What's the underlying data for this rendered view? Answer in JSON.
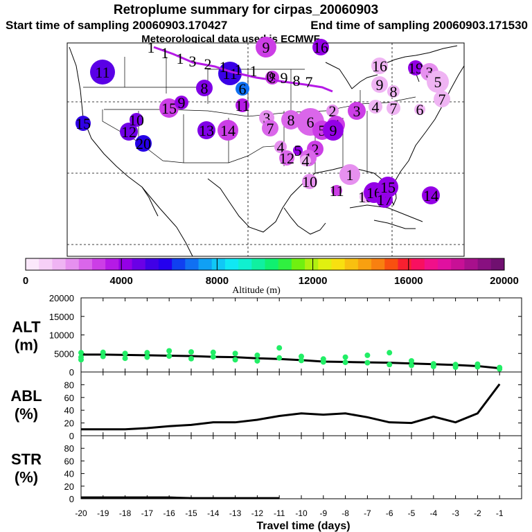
{
  "header": {
    "title": "Retroplume summary for cirpas_20060903",
    "start_label": "Start time of sampling 20060903.170427",
    "end_label": "End time of sampling 20060903.171530",
    "met_label": "Meteorological data used is ECMWF"
  },
  "colorbar": {
    "label": "Altitude (m)",
    "ticks": [
      "0",
      "4000",
      "8000",
      "12000",
      "16000",
      "20000"
    ],
    "colors": [
      "#fbe8fb",
      "#f6d0f7",
      "#efb4f3",
      "#e690ef",
      "#da66ea",
      "#cc3ee6",
      "#b51ae6",
      "#9400e6",
      "#6a00e6",
      "#4000e6",
      "#2400ee",
      "#1040f0",
      "#1070f2",
      "#10a0f4",
      "#10c8f6",
      "#10e8f4",
      "#10f0d0",
      "#10f0a0",
      "#10f070",
      "#30f040",
      "#70f010",
      "#b0f010",
      "#e0f010",
      "#f8e010",
      "#f8c010",
      "#f8a010",
      "#f88010",
      "#f85010",
      "#f82030",
      "#f81060",
      "#f0108a",
      "#e010a0",
      "#c81096",
      "#a8108c",
      "#881080",
      "#701070"
    ]
  },
  "map_labels": [
    {
      "text": "11",
      "color": "#5a00e6",
      "r": 18
    },
    {
      "text": "15",
      "color": "#3000e6",
      "r": 11
    },
    {
      "text": "12",
      "color": "#7000e6",
      "r": 13
    },
    {
      "text": "10",
      "color": "#7a00e6",
      "r": 10
    },
    {
      "text": "20",
      "color": "#2400e6",
      "r": 12
    },
    {
      "text": "15",
      "color": "#cc3ee6",
      "r": 14
    },
    {
      "text": "9",
      "color": "#9400e6",
      "r": 10
    },
    {
      "text": "8",
      "color": "#8000e6",
      "r": 12
    },
    {
      "text": "13",
      "color": "#8000e6",
      "r": 13
    },
    {
      "text": "14",
      "color": "#cc3ee6",
      "r": 15
    },
    {
      "text": "11",
      "color": "#3a00e6",
      "r": 17
    },
    {
      "text": "6",
      "color": "#1070f2",
      "r": 10
    },
    {
      "text": "11",
      "color": "#b51ae6",
      "r": 10
    },
    {
      "text": "9",
      "color": "#cc3ee6",
      "r": 15
    },
    {
      "text": "3",
      "color": "#e690ef",
      "r": 11
    },
    {
      "text": "7",
      "color": "#da66ea",
      "r": 12
    },
    {
      "text": "8",
      "color": "#da66ea",
      "r": 14
    },
    {
      "text": "6",
      "color": "#da66ea",
      "r": 20
    },
    {
      "text": "2",
      "color": "#e690ef",
      "r": 9
    },
    {
      "text": "3",
      "color": "#cc3ee6",
      "r": 13
    },
    {
      "text": "5",
      "color": "#cc3ee6",
      "r": 14
    },
    {
      "text": "4",
      "color": "#cc3ee6",
      "r": 13
    },
    {
      "text": "2",
      "color": "#cc3ee6",
      "r": 12
    },
    {
      "text": "4",
      "color": "#e690ef",
      "r": 9
    },
    {
      "text": "5",
      "color": "#9400e6",
      "r": 7
    },
    {
      "text": "1",
      "color": "#da66ea",
      "r": 12
    },
    {
      "text": "12",
      "color": "#da66ea",
      "r": 11
    },
    {
      "text": "10",
      "color": "#e690ef",
      "r": 11
    },
    {
      "text": "1",
      "color": "#e690ef",
      "r": 15
    },
    {
      "text": "11",
      "color": "#cc3ee6",
      "r": 8
    },
    {
      "text": "18",
      "color": "#efb4f3",
      "r": 9
    },
    {
      "text": "16",
      "color": "#9400e6",
      "r": 15
    },
    {
      "text": "17",
      "color": "#9400e6",
      "r": 12
    },
    {
      "text": "15",
      "color": "#9400e6",
      "r": 15
    },
    {
      "text": "14",
      "color": "#9400e6",
      "r": 13
    },
    {
      "text": "16",
      "color": "#9400e6",
      "r": 12
    },
    {
      "text": "19",
      "color": "#9400e6",
      "r": 11
    },
    {
      "text": "3",
      "color": "#e690ef",
      "r": 13
    },
    {
      "text": "16",
      "color": "#efb4f3",
      "r": 12
    },
    {
      "text": "5",
      "color": "#efb4f3",
      "r": 16
    },
    {
      "text": "7",
      "color": "#efb4f3",
      "r": 12
    },
    {
      "text": "9",
      "color": "#efb4f3",
      "r": 12
    },
    {
      "text": "8",
      "color": "#efb4f3",
      "r": 9
    },
    {
      "text": "7",
      "color": "#efb4f3",
      "r": 10
    },
    {
      "text": "6",
      "color": "#efb4f3",
      "r": 8
    },
    {
      "text": "4",
      "color": "#efb4f3",
      "r": 10
    },
    {
      "text": "4",
      "color": "#efb4f3",
      "r": 8
    },
    {
      "text": "9",
      "color": "#9400e6",
      "r": 15
    },
    {
      "text": "8",
      "color": "#cc3ee6",
      "r": 10
    }
  ],
  "track_labels": [
    "1",
    "1",
    "1",
    "3",
    "2",
    "1",
    "1",
    "1",
    "0",
    "9",
    "8",
    "7",
    "6",
    "5",
    "4",
    "3",
    "2",
    "1"
  ],
  "chart_data": [
    {
      "type": "line",
      "panel": "ALT",
      "ylabel": "ALT\n(m)",
      "ylabel_line1": "ALT",
      "ylabel_line2": "(m)",
      "ylim": [
        0,
        20000
      ],
      "yticks": [
        "0",
        "5000",
        "10000",
        "15000",
        "20000"
      ],
      "x": [
        -20,
        -19,
        -18,
        -17,
        -16,
        -15,
        -14,
        -13,
        -12,
        -11,
        -10,
        -9,
        -8,
        -7,
        -6,
        -5,
        -4,
        -3,
        -2,
        -1
      ],
      "series": [
        {
          "name": "median altitude",
          "values": [
            4700,
            4700,
            4600,
            4500,
            4400,
            4300,
            4100,
            4000,
            3700,
            3500,
            3200,
            2800,
            2700,
            2600,
            2500,
            2300,
            2100,
            1900,
            1600,
            1000
          ]
        },
        {
          "name": "particle altitudes",
          "style": "points",
          "color": "#22ee66",
          "points": [
            [
              -20,
              5200
            ],
            [
              -20,
              4000
            ],
            [
              -20,
              3300
            ],
            [
              -19,
              5300
            ],
            [
              -19,
              4200
            ],
            [
              -18,
              5000
            ],
            [
              -18,
              3700
            ],
            [
              -17,
              5200
            ],
            [
              -17,
              4000
            ],
            [
              -16,
              5700
            ],
            [
              -16,
              4300
            ],
            [
              -15,
              5400
            ],
            [
              -15,
              3600
            ],
            [
              -14,
              5300
            ],
            [
              -14,
              4100
            ],
            [
              -13,
              5000
            ],
            [
              -13,
              3300
            ],
            [
              -12,
              4500
            ],
            [
              -12,
              3000
            ],
            [
              -11,
              3800
            ],
            [
              -11,
              6500
            ],
            [
              -10,
              4200
            ],
            [
              -10,
              3100
            ],
            [
              -9,
              3500
            ],
            [
              -9,
              2700
            ],
            [
              -8,
              4000
            ],
            [
              -8,
              2600
            ],
            [
              -7,
              4500
            ],
            [
              -7,
              2500
            ],
            [
              -6,
              5200
            ],
            [
              -6,
              2000
            ],
            [
              -5,
              3000
            ],
            [
              -5,
              1800
            ],
            [
              -4,
              2200
            ],
            [
              -4,
              1500
            ],
            [
              -3,
              2000
            ],
            [
              -3,
              1300
            ],
            [
              -2,
              2100
            ],
            [
              -2,
              1400
            ],
            [
              -1,
              1200
            ],
            [
              -1,
              800
            ]
          ]
        }
      ]
    },
    {
      "type": "line",
      "panel": "ABL",
      "ylabel_line1": "ABL",
      "ylabel_line2": "(%)",
      "ylim": [
        0,
        100
      ],
      "yticks": [
        "0",
        "20",
        "40",
        "60",
        "80"
      ],
      "x": [
        -20,
        -19,
        -18,
        -17,
        -16,
        -15,
        -14,
        -13,
        -12,
        -11,
        -10,
        -9,
        -8,
        -7,
        -6,
        -5,
        -4,
        -3,
        -2,
        -1
      ],
      "series": [
        {
          "name": "ABL fraction",
          "values": [
            10,
            10,
            10,
            12,
            15,
            17,
            21,
            21,
            25,
            31,
            35,
            33,
            35,
            29,
            21,
            20,
            30,
            21,
            35,
            81
          ]
        }
      ]
    },
    {
      "type": "line",
      "panel": "STR",
      "ylabel_line1": "STR",
      "ylabel_line2": "(%)",
      "ylim": [
        0,
        100
      ],
      "yticks": [
        "0",
        "20",
        "40",
        "60",
        "80"
      ],
      "x": [
        -20,
        -19,
        -18,
        -17,
        -16,
        -15,
        -14,
        -13,
        -12,
        -11
      ],
      "series": [
        {
          "name": "stratospheric fraction",
          "values": [
            2,
            2,
            2,
            2,
            2,
            1,
            1,
            1,
            1,
            1
          ]
        }
      ],
      "xlabel": "Travel time (days)",
      "xticks": [
        "-20",
        "-19",
        "-18",
        "-17",
        "-16",
        "-15",
        "-14",
        "-13",
        "-12",
        "-11",
        "-10",
        "-9",
        "-8",
        "-7",
        "-6",
        "-5",
        "-4",
        "-3",
        "-2",
        "-1"
      ]
    }
  ]
}
